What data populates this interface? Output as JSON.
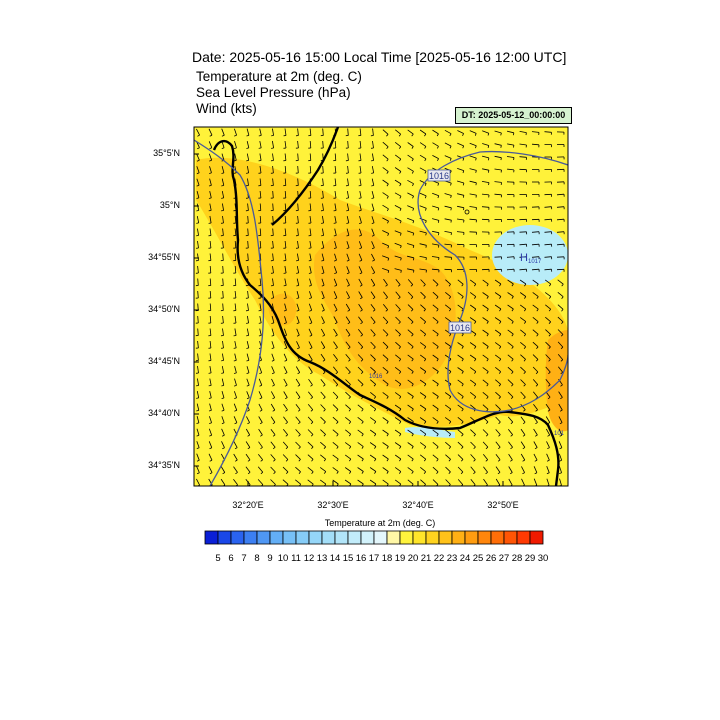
{
  "title": "Date: 2025-05-16  15:00 Local Time [2025-05-16  12:00 UTC]",
  "fields": [
    "Temperature at 2m   (deg. C)",
    "Sea Level Pressure   (hPa)",
    "Wind   (kts)"
  ],
  "dt_label": "DT: 2025-05-12_00:00:00",
  "lat_labels": [
    "35°5'N",
    "35°N",
    "34°55'N",
    "34°50'N",
    "34°45'N",
    "34°40'N",
    "34°35'N"
  ],
  "lon_labels": [
    "32°20'E",
    "32°30'E",
    "32°40'E",
    "32°50'E"
  ],
  "contour_labels": {
    "isobar_west": "1016",
    "isobar_east": "1016",
    "low_center": "1016",
    "high_marker": "H",
    "high_value": "1017",
    "edge_value": "101"
  },
  "colorbar": {
    "title": "Temperature at 2m  (deg. C)",
    "labels": [
      "5",
      "6",
      "7",
      "8",
      "9",
      "10",
      "11",
      "12",
      "13",
      "14",
      "15",
      "16",
      "17",
      "18",
      "19",
      "20",
      "21",
      "22",
      "23",
      "24",
      "25",
      "26",
      "27",
      "28",
      "29",
      "30"
    ],
    "colors": [
      "#0a1fd6",
      "#1a47e8",
      "#2a63f0",
      "#3c7ff2",
      "#4f97f4",
      "#63aef5",
      "#77c0f6",
      "#86ccf7",
      "#95d6f8",
      "#a3def8",
      "#b2e5f9",
      "#c2ecfa",
      "#d2f2fb",
      "#e4f7fc",
      "#fff7a6",
      "#fff33d",
      "#ffe52a",
      "#ffd31f",
      "#ffc21a",
      "#ffb014",
      "#ff9c10",
      "#ff860c",
      "#ff6e08",
      "#ff5505",
      "#ff3a03",
      "#f01a00"
    ]
  }
}
